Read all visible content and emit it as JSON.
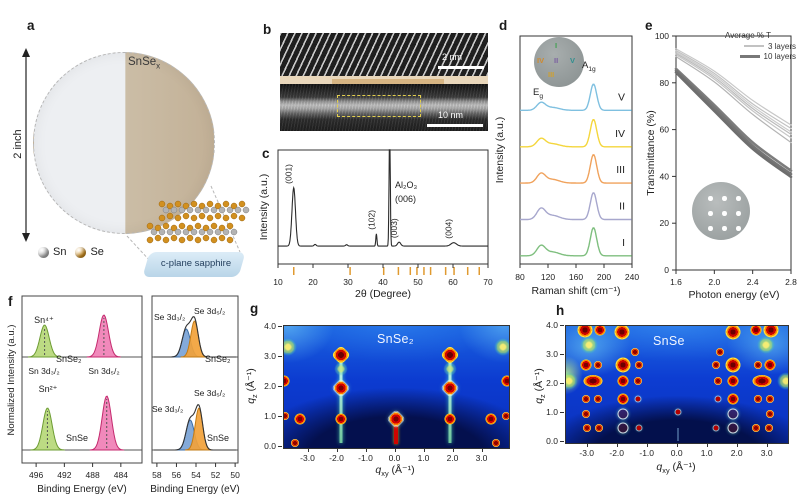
{
  "panels": {
    "a": {
      "letter": "a",
      "size_label": "2 inch",
      "film_label_base": "SnSe",
      "film_label_sub": "x",
      "substrate_label": "c-plane sapphire",
      "legend": [
        {
          "label": "Sn",
          "color": "#b3b3b3"
        },
        {
          "label": "Se",
          "color": "#d2901f"
        }
      ]
    },
    "b": {
      "letter": "b",
      "scalebar_top": "2 nm",
      "scalebar_bottom": "10 nm"
    },
    "c": {
      "letter": "c"
    },
    "d": {
      "letter": "d",
      "inset_points": [
        {
          "label": "I",
          "color": "#3f9f4f",
          "x": 21,
          "y": 4
        },
        {
          "label": "IV",
          "color": "#cf8a2f",
          "x": 3,
          "y": 19
        },
        {
          "label": "II",
          "color": "#7a5fa0",
          "x": 20,
          "y": 19
        },
        {
          "label": "V",
          "color": "#2f8f8f",
          "x": 36,
          "y": 19
        },
        {
          "label": "III",
          "color": "#cfa02f",
          "x": 14,
          "y": 33
        }
      ]
    },
    "e": {
      "letter": "e"
    },
    "f": {
      "letter": "f"
    },
    "g": {
      "letter": "g"
    },
    "h": {
      "letter": "h"
    }
  },
  "chart_data": [
    {
      "id": "c",
      "type": "line",
      "xlabel": "2θ (Degree)",
      "ylabel": "Intensity (a.u.)",
      "xlim": [
        10,
        70
      ],
      "xticks": [
        10,
        20,
        30,
        40,
        50,
        60,
        70
      ],
      "baseline": 0.16,
      "line_color": "#2b2b2b",
      "peaks": [
        {
          "two_theta": 14.5,
          "height": 0.52,
          "width": 0.5,
          "label": "(001)"
        },
        {
          "two_theta": 20.6,
          "height": 0.015,
          "width": 0.3
        },
        {
          "two_theta": 29.6,
          "height": 0.012,
          "width": 0.3
        },
        {
          "two_theta": 38.1,
          "height": 0.11,
          "width": 0.16,
          "label": "(102)"
        },
        {
          "two_theta": 41.9,
          "height": 1.1,
          "width": 0.17
        },
        {
          "two_theta": 44.6,
          "height": 0.035,
          "width": 0.45,
          "label": "(003)"
        },
        {
          "two_theta": 60.2,
          "height": 0.03,
          "width": 0.8,
          "label": "(004)"
        }
      ],
      "sapphire_label": [
        "Al₂O₃",
        "(006)"
      ],
      "reference_ticks": [
        14.5,
        30.6,
        40.2,
        44.4,
        47.8,
        49.7,
        51.7,
        53.6,
        57.9,
        60.3,
        64.2,
        67.5
      ],
      "reference_tick_color": "#e09a30"
    },
    {
      "id": "d",
      "type": "line-stack",
      "xlabel": "Raman shift (cm⁻¹)",
      "ylabel": "Intensity (a.u.)",
      "xlim": [
        80,
        240
      ],
      "xticks": [
        80,
        120,
        160,
        200,
        240
      ],
      "mode_labels": [
        {
          "base": "E",
          "sub": "g",
          "raman_shift": 110
        },
        {
          "base": "A",
          "sub": "1g",
          "raman_shift": 185
        }
      ],
      "series": [
        {
          "name": "I",
          "color": "#7fbf7f",
          "offset": 0.036,
          "eg_height": 0.042,
          "a1g_height": 0.123
        },
        {
          "name": "II",
          "color": "#a7a7cd",
          "offset": 0.195,
          "eg_height": 0.046,
          "a1g_height": 0.118
        },
        {
          "name": "III",
          "color": "#f0a25c",
          "offset": 0.355,
          "eg_height": 0.04,
          "a1g_height": 0.125
        },
        {
          "name": "IV",
          "color": "#f4d63c",
          "offset": 0.514,
          "eg_height": 0.034,
          "a1g_height": 0.12
        },
        {
          "name": "V",
          "color": "#7fc0e0",
          "offset": 0.674,
          "eg_height": 0.032,
          "a1g_height": 0.115
        }
      ]
    },
    {
      "id": "e",
      "type": "line",
      "xlabel": "Photon energy (eV)",
      "ylabel": "Transmittance (%)",
      "xlim": [
        1.6,
        2.8
      ],
      "ylim": [
        0,
        100
      ],
      "xticks": [
        "1.6",
        "2.0",
        "2.4",
        "2.8"
      ],
      "yticks": [
        0,
        20,
        40,
        60,
        80,
        100
      ],
      "legend": {
        "title": "Average % T",
        "entries": [
          {
            "label": "3 layers",
            "color": "#c2c2c2",
            "line_width": 2
          },
          {
            "label": "10 layers",
            "color": "#787878",
            "line_width": 3
          }
        ]
      },
      "series": [
        {
          "group": "3 layers",
          "color": "#c8c8c8",
          "width": 1.2,
          "x": [
            1.6,
            2.0,
            2.4,
            2.8
          ],
          "y": [
            94.5,
            85.0,
            72.5,
            62.0
          ]
        },
        {
          "group": "3 layers",
          "color": "#c2c2c2",
          "width": 1.2,
          "x": [
            1.6,
            2.0,
            2.4,
            2.8
          ],
          "y": [
            93.8,
            84.0,
            71.0,
            60.5
          ]
        },
        {
          "group": "3 layers",
          "color": "#cccccc",
          "width": 1.2,
          "x": [
            1.6,
            2.0,
            2.4,
            2.8
          ],
          "y": [
            93.2,
            83.2,
            70.0,
            59.0
          ]
        },
        {
          "group": "3 layers",
          "color": "#bcbcbc",
          "width": 1.2,
          "x": [
            1.6,
            2.0,
            2.4,
            2.8
          ],
          "y": [
            92.6,
            82.4,
            69.0,
            58.0
          ]
        },
        {
          "group": "3 layers",
          "color": "#c6c6c6",
          "width": 1.2,
          "x": [
            1.6,
            2.0,
            2.4,
            2.8
          ],
          "y": [
            92.0,
            81.6,
            68.0,
            56.5
          ]
        },
        {
          "group": "3 layers",
          "color": "#b4b4b4",
          "width": 1.2,
          "x": [
            1.6,
            2.0,
            2.4,
            2.8
          ],
          "y": [
            91.2,
            80.4,
            66.5,
            54.5
          ]
        },
        {
          "group": "10 layers",
          "color": "#7d7d7d",
          "width": 2.6,
          "x": [
            1.6,
            2.0,
            2.4,
            2.8
          ],
          "y": [
            86.0,
            70.5,
            54.5,
            42.5
          ]
        },
        {
          "group": "10 layers",
          "color": "#747474",
          "width": 2.6,
          "x": [
            1.6,
            2.0,
            2.4,
            2.8
          ],
          "y": [
            85.2,
            69.3,
            53.0,
            41.0
          ]
        },
        {
          "group": "10 layers",
          "color": "#6e6e6e",
          "width": 2.6,
          "x": [
            1.6,
            2.0,
            2.4,
            2.8
          ],
          "y": [
            84.4,
            68.0,
            51.8,
            39.8
          ]
        }
      ]
    },
    {
      "id": "f",
      "type": "xps",
      "ylabel": "Normalized Intensity (a.u.)",
      "sn_panel": {
        "xlabel": "Binding Energy (eV)",
        "xticks": [
          496,
          492,
          488,
          484
        ],
        "spectra": [
          {
            "sample": "SnSe₂",
            "species": "Sn⁴⁺",
            "peaks": [
              {
                "label": "Sn 3d₃/₂",
                "binding_energy": 494.8,
                "rel_height": 0.76,
                "fill": "#b6d878",
                "edge": "#6d9c33"
              },
              {
                "label": "Sn 3d₅/₂",
                "binding_energy": 486.4,
                "rel_height": 1.0,
                "fill": "#f07fb5",
                "edge": "#c42a6e"
              }
            ]
          },
          {
            "sample": "SnSe",
            "species": "Sn²⁺",
            "peaks": [
              {
                "label": "Sn 3d₃/₂",
                "binding_energy": 494.4,
                "rel_height": 0.78,
                "fill": "#b6d878",
                "edge": "#6d9c33"
              },
              {
                "label": "Sn 3d₅/₂",
                "binding_energy": 486.0,
                "rel_height": 1.0,
                "fill": "#f07fb5",
                "edge": "#c42a6e"
              }
            ]
          }
        ]
      },
      "se_panel": {
        "xlabel": "Binding Energy (eV)",
        "xticks": [
          58,
          56,
          54,
          52,
          50
        ],
        "spectra": [
          {
            "sample": "SnSe₂",
            "peaks": [
              {
                "label": "Se 3d₃/₂",
                "binding_energy": 55.0,
                "rel_height": 0.78,
                "fill": "#7aa3d6",
                "edge": "#3c6ea6"
              },
              {
                "label": "Se 3d₅/₂",
                "binding_energy": 54.15,
                "rel_height": 1.0,
                "fill": "#f2a23a",
                "edge": "#c27b14"
              }
            ]
          },
          {
            "sample": "SnSe",
            "peaks": [
              {
                "label": "Se 3d₃/₂",
                "binding_energy": 54.6,
                "rel_height": 0.72,
                "fill": "#7aa3d6",
                "edge": "#3c6ea6"
              },
              {
                "label": "Se 3d₅/₂",
                "binding_energy": 53.7,
                "rel_height": 1.0,
                "fill": "#f2a23a",
                "edge": "#c27b14"
              }
            ]
          }
        ]
      }
    },
    {
      "id": "g",
      "type": "heatmap",
      "title": "SnSe₂",
      "xlabel_base": "q",
      "xlabel_sub": "xy",
      "xlabel_unit": " (Å⁻¹)",
      "ylabel_base": "q",
      "ylabel_sub": "z",
      "ylabel_unit": " (Å⁻¹)",
      "xticks": [
        "-3.0",
        "-2.0",
        "-1.0",
        "0.0",
        "1.0",
        "2.0",
        "3.0"
      ],
      "yticks": [
        "0.0",
        "1.0",
        "2.0",
        "3.0",
        "4.0"
      ],
      "spots": [
        [
          -1.88,
          3.08,
          "lr"
        ],
        [
          1.88,
          3.08,
          "lr"
        ],
        [
          -1.88,
          2.6,
          "f"
        ],
        [
          1.88,
          2.6,
          "f"
        ],
        [
          -1.88,
          1.97,
          "mr"
        ],
        [
          1.88,
          1.97,
          "mr"
        ],
        [
          -1.88,
          0.95,
          "m"
        ],
        [
          1.88,
          0.95,
          "m"
        ],
        [
          0,
          0.95,
          "mr"
        ],
        [
          -3.28,
          0.95,
          "m"
        ],
        [
          3.28,
          0.95,
          "m"
        ],
        [
          -3.82,
          1.05,
          "s"
        ],
        [
          3.82,
          1.05,
          "s"
        ],
        [
          -3.85,
          2.2,
          "m"
        ],
        [
          3.85,
          2.2,
          "m"
        ],
        [
          -3.7,
          3.35,
          "y"
        ],
        [
          3.7,
          3.35,
          "y"
        ],
        [
          -3.45,
          0.12,
          "s"
        ],
        [
          3.45,
          0.12,
          "s"
        ]
      ],
      "streaks": [
        [
          -1.88,
          0.15,
          2.95,
          "cyan"
        ],
        [
          1.88,
          0.15,
          2.95,
          "cyan"
        ],
        [
          0,
          0.1,
          0.88,
          "red"
        ]
      ]
    },
    {
      "id": "h",
      "type": "heatmap",
      "title": "SnSe",
      "xlabel_base": "q",
      "xlabel_sub": "xy",
      "xlabel_unit": " (Å⁻¹)",
      "ylabel_base": "q",
      "ylabel_sub": "z",
      "ylabel_unit": " (Å⁻¹)",
      "xticks": [
        "-3.0",
        "-2.0",
        "-1.0",
        "0.0",
        "1.0",
        "2.0",
        "3.0"
      ],
      "yticks": [
        "0.0",
        "1.0",
        "2.0",
        "3.0",
        "4.0"
      ],
      "spots": [
        [
          -1.85,
          3.8,
          "l"
        ],
        [
          1.85,
          3.8,
          "l"
        ],
        [
          -2.6,
          3.85,
          "m"
        ],
        [
          2.6,
          3.85,
          "m"
        ],
        [
          -3.1,
          3.85,
          "l"
        ],
        [
          3.1,
          3.85,
          "l"
        ],
        [
          -1.42,
          3.1,
          "s"
        ],
        [
          1.42,
          3.1,
          "s"
        ],
        [
          -2.95,
          3.35,
          "y"
        ],
        [
          2.95,
          3.35,
          "y"
        ],
        [
          -3.06,
          2.64,
          "m"
        ],
        [
          3.06,
          2.64,
          "m"
        ],
        [
          -2.67,
          2.64,
          "s"
        ],
        [
          2.67,
          2.64,
          "s"
        ],
        [
          -1.83,
          2.64,
          "l"
        ],
        [
          1.83,
          2.64,
          "l"
        ],
        [
          -1.28,
          2.64,
          "s"
        ],
        [
          1.28,
          2.64,
          "s"
        ],
        [
          -2.82,
          2.12,
          "lw"
        ],
        [
          2.82,
          2.12,
          "lw"
        ],
        [
          -1.83,
          2.12,
          "m"
        ],
        [
          1.83,
          2.12,
          "m"
        ],
        [
          -1.33,
          2.12,
          "s"
        ],
        [
          1.33,
          2.12,
          "s"
        ],
        [
          -3.62,
          2.1,
          "y"
        ],
        [
          3.62,
          2.1,
          "y"
        ],
        [
          -3.06,
          1.5,
          "s"
        ],
        [
          3.06,
          1.5,
          "s"
        ],
        [
          -2.67,
          1.5,
          "s"
        ],
        [
          2.67,
          1.5,
          "s"
        ],
        [
          -1.83,
          1.5,
          "m"
        ],
        [
          1.83,
          1.5,
          "m"
        ],
        [
          -1.33,
          1.5,
          "xs"
        ],
        [
          1.33,
          1.5,
          "xs"
        ],
        [
          -3.06,
          0.98,
          "s"
        ],
        [
          3.06,
          0.98,
          "s"
        ],
        [
          -1.83,
          0.98,
          "ring"
        ],
        [
          1.83,
          0.98,
          "ring"
        ],
        [
          0,
          1.05,
          "xs"
        ],
        [
          -3.03,
          0.47,
          "s"
        ],
        [
          3.03,
          0.47,
          "s"
        ],
        [
          -2.62,
          0.47,
          "s"
        ],
        [
          2.62,
          0.47,
          "s"
        ],
        [
          -1.83,
          0.47,
          "ring"
        ],
        [
          1.83,
          0.47,
          "ring"
        ],
        [
          -1.28,
          0.47,
          "xs"
        ],
        [
          1.28,
          0.47,
          "xs"
        ]
      ],
      "streaks": [
        [
          0,
          0.05,
          0.5,
          "faint"
        ]
      ]
    }
  ]
}
